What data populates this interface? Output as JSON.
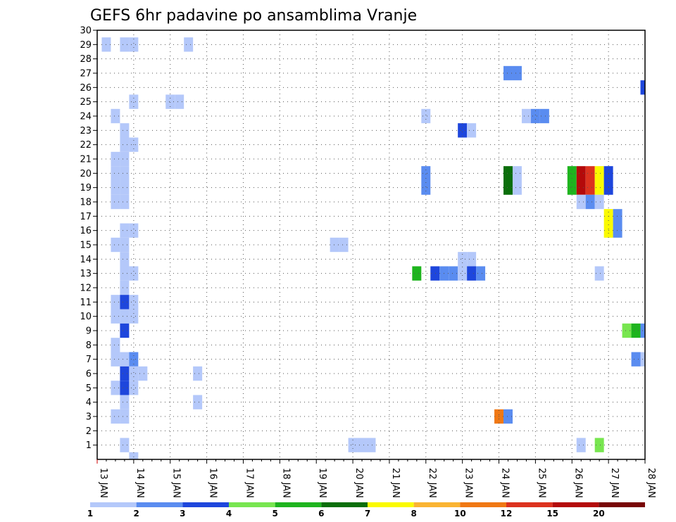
{
  "chart_data": {
    "type": "heatmap",
    "title": "GEFS 6hr padavine po ansamblima Vranje",
    "y_range": [
      0,
      30
    ],
    "y_ticks": [
      "1",
      "2",
      "3",
      "4",
      "5",
      "6",
      "7",
      "8",
      "9",
      "10",
      "11",
      "12",
      "13",
      "14",
      "15",
      "16",
      "17",
      "18",
      "19",
      "20",
      "21",
      "22",
      "23",
      "24",
      "25",
      "26",
      "27",
      "28",
      "29",
      "30"
    ],
    "x_range_days": [
      13,
      28
    ],
    "x_ticks": [
      "13 JAN",
      "14 JAN",
      "15 JAN",
      "16 JAN",
      "17 JAN",
      "18 JAN",
      "19 JAN",
      "20 JAN",
      "21 JAN",
      "22 JAN",
      "23 JAN",
      "24 JAN",
      "25 JAN",
      "26 JAN",
      "27 JAN",
      "28 JAN"
    ],
    "legend": {
      "boundaries": [
        "1",
        "2",
        "3",
        "4",
        "5",
        "6",
        "7",
        "8",
        "10",
        "12",
        "15",
        "20"
      ],
      "colors": [
        "#b4c8fa",
        "#5a8cf0",
        "#1e46dc",
        "#78e650",
        "#1eb41e",
        "#0a6e0a",
        "#fafa00",
        "#fab432",
        "#f07814",
        "#dc321e",
        "#b40a0a",
        "#780505"
      ]
    },
    "cells": [
      {
        "t": 13.25,
        "m": 29,
        "c": 1
      },
      {
        "t": 13.75,
        "m": 29,
        "c": 1
      },
      {
        "t": 14.0,
        "m": 29,
        "c": 1
      },
      {
        "t": 15.5,
        "m": 29,
        "c": 1
      },
      {
        "t": 24.5,
        "m": 27,
        "c": 2
      },
      {
        "t": 24.25,
        "m": 27,
        "c": 2
      },
      {
        "t": 28.0,
        "m": 26,
        "c": 3
      },
      {
        "t": 14.0,
        "m": 25,
        "c": 1
      },
      {
        "t": 15.0,
        "m": 25,
        "c": 1
      },
      {
        "t": 15.25,
        "m": 25,
        "c": 1
      },
      {
        "t": 13.5,
        "m": 24,
        "c": 1
      },
      {
        "t": 22.0,
        "m": 24,
        "c": 1
      },
      {
        "t": 24.75,
        "m": 24,
        "c": 1
      },
      {
        "t": 25.0,
        "m": 24,
        "c": 2
      },
      {
        "t": 25.25,
        "m": 24,
        "c": 2
      },
      {
        "t": 13.75,
        "m": 23,
        "c": 1
      },
      {
        "t": 23.0,
        "m": 23,
        "c": 3
      },
      {
        "t": 23.25,
        "m": 23,
        "c": 1
      },
      {
        "t": 13.75,
        "m": 22,
        "c": 1
      },
      {
        "t": 14.0,
        "m": 22,
        "c": 1
      },
      {
        "t": 13.5,
        "m": 21,
        "c": 1
      },
      {
        "t": 13.75,
        "m": 21,
        "c": 1
      },
      {
        "t": 13.5,
        "m": 20,
        "c": 1
      },
      {
        "t": 13.75,
        "m": 20,
        "c": 1
      },
      {
        "t": 22.0,
        "m": 20,
        "c": 2
      },
      {
        "t": 24.25,
        "m": 20,
        "c": 6
      },
      {
        "t": 24.5,
        "m": 20,
        "c": 1
      },
      {
        "t": 26.0,
        "m": 20,
        "c": 5
      },
      {
        "t": 26.25,
        "m": 20,
        "c": 11
      },
      {
        "t": 26.5,
        "m": 20,
        "c": 10
      },
      {
        "t": 26.75,
        "m": 20,
        "c": 7
      },
      {
        "t": 27.0,
        "m": 20,
        "c": 3
      },
      {
        "t": 13.5,
        "m": 19,
        "c": 1
      },
      {
        "t": 13.75,
        "m": 19,
        "c": 1
      },
      {
        "t": 22.0,
        "m": 19,
        "c": 2
      },
      {
        "t": 24.25,
        "m": 19,
        "c": 6
      },
      {
        "t": 24.5,
        "m": 19,
        "c": 1
      },
      {
        "t": 26.0,
        "m": 19,
        "c": 5
      },
      {
        "t": 26.25,
        "m": 19,
        "c": 11
      },
      {
        "t": 26.5,
        "m": 19,
        "c": 10
      },
      {
        "t": 26.75,
        "m": 19,
        "c": 7
      },
      {
        "t": 27.0,
        "m": 19,
        "c": 3
      },
      {
        "t": 13.5,
        "m": 18,
        "c": 1
      },
      {
        "t": 13.75,
        "m": 18,
        "c": 1
      },
      {
        "t": 26.25,
        "m": 18,
        "c": 1
      },
      {
        "t": 26.5,
        "m": 18,
        "c": 2
      },
      {
        "t": 26.75,
        "m": 18,
        "c": 1
      },
      {
        "t": 27.0,
        "m": 17,
        "c": 7
      },
      {
        "t": 27.25,
        "m": 17,
        "c": 2
      },
      {
        "t": 13.75,
        "m": 16,
        "c": 1
      },
      {
        "t": 14.0,
        "m": 16,
        "c": 1
      },
      {
        "t": 27.0,
        "m": 16,
        "c": 7
      },
      {
        "t": 27.25,
        "m": 16,
        "c": 2
      },
      {
        "t": 13.5,
        "m": 15,
        "c": 1
      },
      {
        "t": 13.75,
        "m": 15,
        "c": 1
      },
      {
        "t": 19.5,
        "m": 15,
        "c": 1
      },
      {
        "t": 19.75,
        "m": 15,
        "c": 1
      },
      {
        "t": 13.75,
        "m": 14,
        "c": 1
      },
      {
        "t": 23.0,
        "m": 14,
        "c": 1
      },
      {
        "t": 23.25,
        "m": 14,
        "c": 1
      },
      {
        "t": 13.75,
        "m": 13,
        "c": 1
      },
      {
        "t": 14.0,
        "m": 13,
        "c": 1
      },
      {
        "t": 21.75,
        "m": 13,
        "c": 5
      },
      {
        "t": 22.25,
        "m": 13,
        "c": 3
      },
      {
        "t": 22.5,
        "m": 13,
        "c": 2
      },
      {
        "t": 22.75,
        "m": 13,
        "c": 2
      },
      {
        "t": 23.0,
        "m": 13,
        "c": 1
      },
      {
        "t": 23.25,
        "m": 13,
        "c": 3
      },
      {
        "t": 23.5,
        "m": 13,
        "c": 2
      },
      {
        "t": 26.75,
        "m": 13,
        "c": 1
      },
      {
        "t": 13.75,
        "m": 12,
        "c": 1
      },
      {
        "t": 13.5,
        "m": 11,
        "c": 1
      },
      {
        "t": 13.75,
        "m": 11,
        "c": 3
      },
      {
        "t": 14.0,
        "m": 11,
        "c": 1
      },
      {
        "t": 13.5,
        "m": 10,
        "c": 1
      },
      {
        "t": 13.75,
        "m": 10,
        "c": 1
      },
      {
        "t": 14.0,
        "m": 10,
        "c": 1
      },
      {
        "t": 13.75,
        "m": 9,
        "c": 3
      },
      {
        "t": 27.5,
        "m": 9,
        "c": 4
      },
      {
        "t": 27.75,
        "m": 9,
        "c": 5
      },
      {
        "t": 28.0,
        "m": 9,
        "c": 2
      },
      {
        "t": 13.5,
        "m": 8,
        "c": 1
      },
      {
        "t": 13.5,
        "m": 7,
        "c": 1
      },
      {
        "t": 13.75,
        "m": 7,
        "c": 1
      },
      {
        "t": 14.0,
        "m": 7,
        "c": 2
      },
      {
        "t": 27.75,
        "m": 7,
        "c": 2
      },
      {
        "t": 28.0,
        "m": 7,
        "c": 1
      },
      {
        "t": 13.75,
        "m": 6,
        "c": 3
      },
      {
        "t": 14.0,
        "m": 6,
        "c": 1
      },
      {
        "t": 14.25,
        "m": 6,
        "c": 1
      },
      {
        "t": 15.75,
        "m": 6,
        "c": 1
      },
      {
        "t": 13.5,
        "m": 5,
        "c": 1
      },
      {
        "t": 13.75,
        "m": 5,
        "c": 3
      },
      {
        "t": 14.0,
        "m": 5,
        "c": 1
      },
      {
        "t": 13.75,
        "m": 4,
        "c": 1
      },
      {
        "t": 15.75,
        "m": 4,
        "c": 1
      },
      {
        "t": 13.5,
        "m": 3,
        "c": 1
      },
      {
        "t": 13.75,
        "m": 3,
        "c": 1
      },
      {
        "t": 24.0,
        "m": 3,
        "c": 9
      },
      {
        "t": 24.25,
        "m": 3,
        "c": 2
      },
      {
        "t": 13.75,
        "m": 1,
        "c": 1
      },
      {
        "t": 20.0,
        "m": 1,
        "c": 1
      },
      {
        "t": 20.25,
        "m": 1,
        "c": 1
      },
      {
        "t": 20.5,
        "m": 1,
        "c": 1
      },
      {
        "t": 26.25,
        "m": 1,
        "c": 1
      },
      {
        "t": 26.75,
        "m": 1,
        "c": 4
      },
      {
        "t": 14.0,
        "m": 0,
        "c": 1
      }
    ]
  }
}
